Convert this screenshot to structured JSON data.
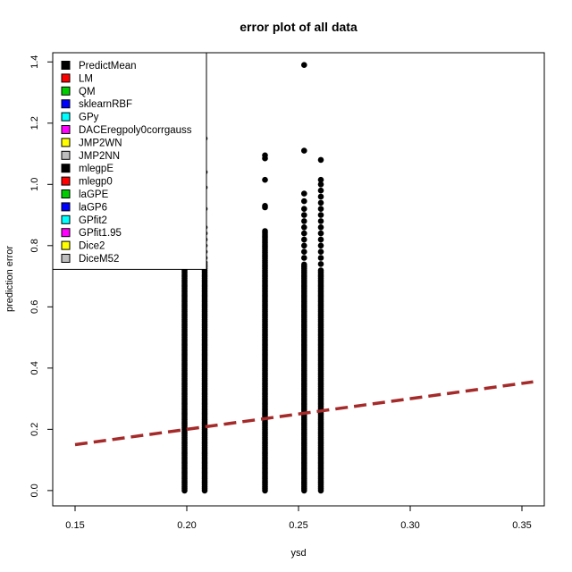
{
  "chart_data": {
    "type": "scatter",
    "title": "error plot of all data",
    "xlabel": "ysd",
    "ylabel": "prediction error",
    "xlim": [
      0.14,
      0.36
    ],
    "ylim": [
      -0.05,
      1.43
    ],
    "xticks": [
      {
        "value": 0.15,
        "label": "0.15"
      },
      {
        "value": 0.2,
        "label": "0.20"
      },
      {
        "value": 0.25,
        "label": "0.25"
      },
      {
        "value": 0.3,
        "label": "0.30"
      },
      {
        "value": 0.35,
        "label": "0.35"
      }
    ],
    "yticks": [
      {
        "value": 0.0,
        "label": "0.0"
      },
      {
        "value": 0.2,
        "label": "0.2"
      },
      {
        "value": 0.4,
        "label": "0.4"
      },
      {
        "value": 0.6,
        "label": "0.6"
      },
      {
        "value": 0.8,
        "label": "0.8"
      },
      {
        "value": 1.0,
        "label": "1.0"
      },
      {
        "value": 1.2,
        "label": "1.2"
      },
      {
        "value": 1.4,
        "label": "1.4"
      }
    ],
    "grid": false,
    "legend_position": "top-left",
    "legend": [
      {
        "label": "PredictMean",
        "color": "#000000"
      },
      {
        "label": "LM",
        "color": "#ff0000"
      },
      {
        "label": "QM",
        "color": "#00cd00"
      },
      {
        "label": "sklearnRBF",
        "color": "#0000ff"
      },
      {
        "label": "GPy",
        "color": "#00ffff"
      },
      {
        "label": "DACEregpoly0corrgauss",
        "color": "#ff00ff"
      },
      {
        "label": "JMP2WN",
        "color": "#ffff00"
      },
      {
        "label": "JMP2NN",
        "color": "#bebebe"
      },
      {
        "label": "mlegpE",
        "color": "#000000"
      },
      {
        "label": "mlegp0",
        "color": "#ff0000"
      },
      {
        "label": "laGPE",
        "color": "#00cd00"
      },
      {
        "label": "laGP6",
        "color": "#0000ff"
      },
      {
        "label": "GPfit2",
        "color": "#00ffff"
      },
      {
        "label": "GPfit1.95",
        "color": "#ff00ff"
      },
      {
        "label": "Dice2",
        "color": "#ffff00"
      },
      {
        "label": "DiceM52",
        "color": "#bebebe"
      }
    ],
    "point_color": "#000000",
    "columns": [
      {
        "x": 0.199,
        "dense_max": 0.74,
        "outliers": [
          0.75,
          0.845,
          0.92
        ]
      },
      {
        "x": 0.208,
        "dense_max": 0.75,
        "outliers": [
          0.76,
          0.78,
          0.8,
          0.82,
          0.84,
          0.86,
          0.92,
          0.99,
          1.04,
          1.15
        ]
      },
      {
        "x": 0.235,
        "dense_max": 0.85,
        "outliers": [
          0.925,
          0.93,
          1.015,
          1.085,
          1.095
        ]
      },
      {
        "x": 0.2525,
        "dense_max": 0.74,
        "outliers": [
          0.76,
          0.78,
          0.8,
          0.82,
          0.84,
          0.86,
          0.88,
          0.9,
          0.92,
          0.945,
          0.97,
          1.11,
          1.39
        ]
      },
      {
        "x": 0.26,
        "dense_max": 0.72,
        "outliers": [
          0.74,
          0.76,
          0.78,
          0.8,
          0.82,
          0.84,
          0.86,
          0.88,
          0.9,
          0.92,
          0.94,
          0.96,
          0.98,
          1.0,
          1.015,
          1.08
        ]
      }
    ],
    "trend_line": {
      "x": [
        0.15,
        0.355
      ],
      "y": [
        0.15,
        0.355
      ],
      "color": "#a52a2a",
      "style": "dashed"
    }
  }
}
